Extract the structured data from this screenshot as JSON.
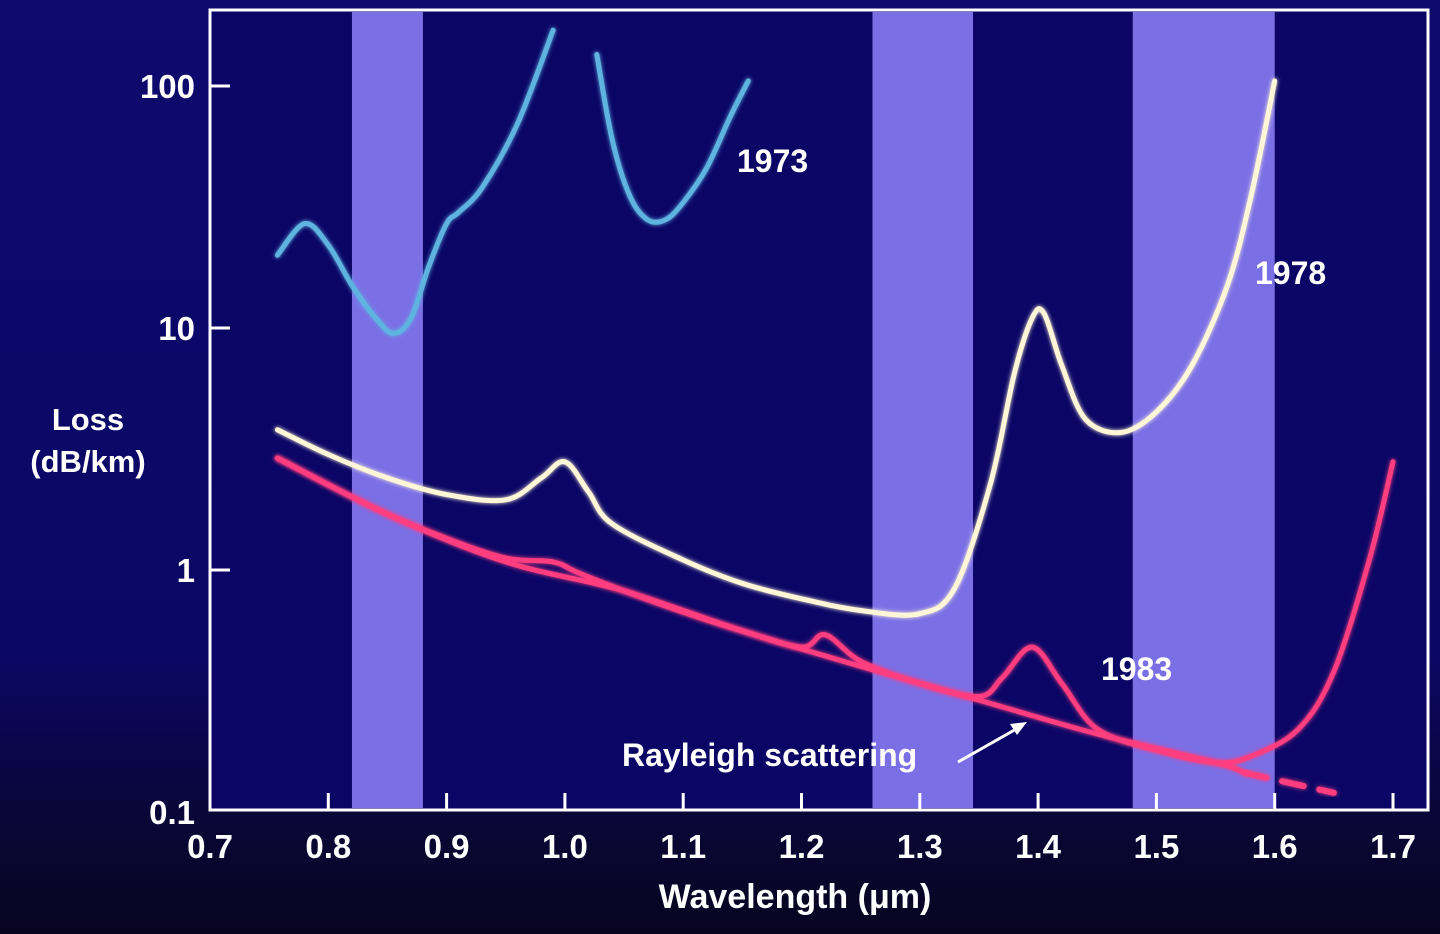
{
  "chart_data": {
    "type": "line",
    "title": "",
    "xlabel": "Wavelength (μm)",
    "ylabel": "Loss (dB/km)",
    "ylabel_lines": [
      "Loss",
      "(dB/km)"
    ],
    "xscale": "linear",
    "yscale": "log",
    "xlim": [
      0.7,
      1.7
    ],
    "ylim": [
      0.1,
      200
    ],
    "x_ticks": [
      "0.7",
      "0.8",
      "0.9",
      "1.0",
      "1.1",
      "1.2",
      "1.3",
      "1.4",
      "1.5",
      "1.6",
      "1.7"
    ],
    "y_ticks": [
      "100",
      "10",
      "1",
      "0.1"
    ],
    "grid": false,
    "highlight_bands": [
      {
        "from": 0.82,
        "to": 0.88,
        "color": "#7b6fe6"
      },
      {
        "from": 1.26,
        "to": 1.345,
        "color": "#7b6fe6"
      },
      {
        "from": 1.48,
        "to": 1.6,
        "color": "#7b6fe6"
      }
    ],
    "series": [
      {
        "name": "1973",
        "color": "#5fb3e0",
        "segments": [
          {
            "x": [
              0.757,
              0.78,
              0.8,
              0.82,
              0.84,
              0.855,
              0.87,
              0.885,
              0.9,
              0.91,
              0.93,
              0.96,
              0.99
            ],
            "y": [
              20,
              27,
              22,
              15,
              11,
              9.5,
              11,
              18,
              27,
              30,
              38,
              70,
              170
            ]
          },
          {
            "x": [
              1.027,
              1.04,
              1.055,
              1.07,
              1.085,
              1.1,
              1.12,
              1.14,
              1.155
            ],
            "y": [
              135,
              60,
              35,
              28,
              28,
              33,
              46,
              75,
              105
            ]
          }
        ]
      },
      {
        "name": "1978",
        "color": "#fff6d8",
        "x": [
          0.757,
          0.8,
          0.85,
          0.9,
          0.95,
          0.98,
          1.0,
          1.02,
          1.04,
          1.1,
          1.15,
          1.2,
          1.25,
          1.3,
          1.33,
          1.36,
          1.38,
          1.395,
          1.405,
          1.42,
          1.44,
          1.47,
          1.5,
          1.53,
          1.56,
          1.58,
          1.6
        ],
        "y": [
          3.8,
          3.0,
          2.4,
          2.05,
          1.95,
          2.4,
          2.8,
          2.1,
          1.55,
          1.1,
          0.88,
          0.76,
          0.68,
          0.66,
          0.85,
          2.3,
          6.5,
          11,
          11.5,
          7,
          4.2,
          3.7,
          4.5,
          7,
          15,
          35,
          105
        ]
      },
      {
        "name": "1983",
        "color": "#ff3d7f",
        "x": [
          0.757,
          0.8,
          0.85,
          0.9,
          0.95,
          0.99,
          1.01,
          1.05,
          1.1,
          1.15,
          1.2,
          1.22,
          1.25,
          1.3,
          1.35,
          1.37,
          1.395,
          1.42,
          1.45,
          1.5,
          1.55,
          1.58,
          1.62,
          1.65,
          1.68,
          1.7
        ],
        "y": [
          2.9,
          2.25,
          1.7,
          1.35,
          1.12,
          1.08,
          0.98,
          0.82,
          0.67,
          0.56,
          0.48,
          0.54,
          0.42,
          0.34,
          0.3,
          0.36,
          0.48,
          0.34,
          0.22,
          0.18,
          0.16,
          0.17,
          0.22,
          0.38,
          1.1,
          2.8
        ]
      },
      {
        "name": "Rayleigh scattering",
        "color": "#ff3d7f",
        "style": "solid-then-dashed",
        "x": [
          0.757,
          0.85,
          0.95,
          1.05,
          1.15,
          1.25,
          1.35,
          1.45,
          1.55,
          1.575,
          1.65
        ],
        "y": [
          2.9,
          1.7,
          1.08,
          0.82,
          0.56,
          0.4,
          0.29,
          0.21,
          0.16,
          0.145,
          0.12
        ],
        "dashed_from_x": 1.575
      }
    ],
    "annotations": [
      {
        "text": "1973",
        "x": 1.18,
        "y": 30
      },
      {
        "text": "1978",
        "x": 1.62,
        "y": 9
      },
      {
        "text": "1983",
        "x": 1.53,
        "y": 0.42
      },
      {
        "text": "Rayleigh scattering",
        "x": 1.06,
        "y": 0.16,
        "arrow_to": [
          1.39,
          0.23
        ]
      }
    ]
  },
  "labels": {
    "ylabel_line1": "Loss",
    "ylabel_line2": "(dB/km)",
    "xlabel": "Wavelength (μm)",
    "series_1973": "1973",
    "series_1978": "1978",
    "series_1983": "1983",
    "rayleigh": "Rayleigh scattering",
    "y_ticks": [
      "100",
      "10",
      "1",
      "0.1"
    ],
    "x_ticks": [
      "0.7",
      "0.8",
      "0.9",
      "1.0",
      "1.1",
      "1.2",
      "1.3",
      "1.4",
      "1.5",
      "1.6",
      "1.7"
    ]
  }
}
